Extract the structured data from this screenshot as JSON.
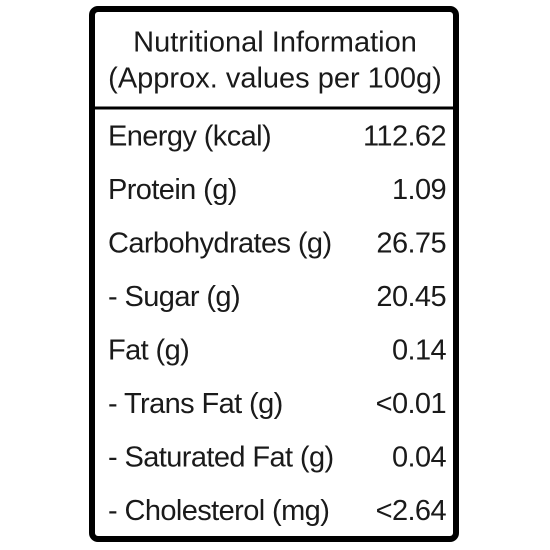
{
  "header": {
    "title": "Nutritional Information",
    "subtitle": "(Approx. values per 100g)"
  },
  "table": {
    "rows": [
      [
        "Energy (kcal)",
        "112.62"
      ],
      [
        "Protein (g)",
        "1.09"
      ],
      [
        "Carbohydrates (g)",
        "26.75"
      ],
      [
        "- Sugar (g)",
        "20.45"
      ],
      [
        "Fat (g)",
        "0.14"
      ],
      [
        "- Trans Fat (g)",
        "<0.01"
      ],
      [
        "- Saturated Fat (g)",
        "0.04"
      ],
      [
        "- Cholesterol (mg)",
        "<2.64"
      ]
    ]
  }
}
